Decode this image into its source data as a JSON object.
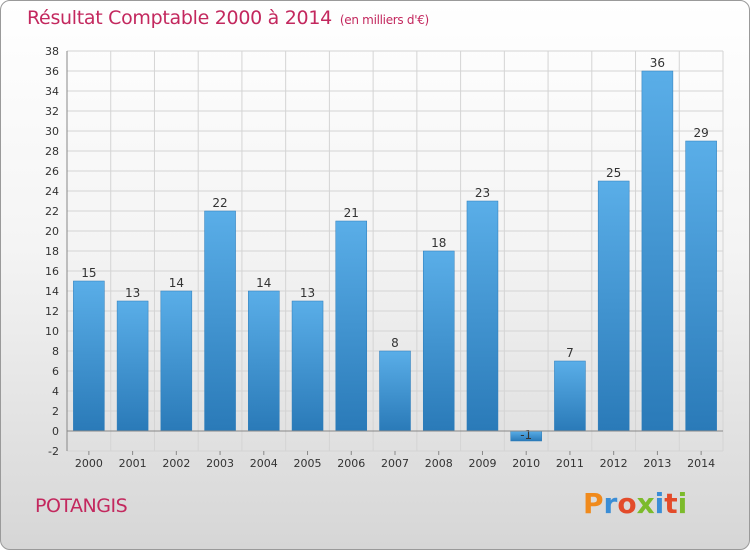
{
  "title": "Résultat Comptable 2000 à 2014",
  "subtitle": "(en milliers d'€)",
  "city": "POTANGIS",
  "logo": {
    "letters": [
      "P",
      "r",
      "o",
      "x",
      "i",
      "t",
      "i"
    ],
    "colors": [
      "#f08a1c",
      "#3a8dd6",
      "#e34b2a",
      "#7cbb2b",
      "#3a8dd6",
      "#e34b2a",
      "#7cbb2b"
    ]
  },
  "colors": {
    "bar_light": "#5aaee8",
    "bar_dark": "#2a7ab8",
    "title": "#c3285e"
  },
  "chart_data": {
    "type": "bar",
    "title": "Résultat Comptable 2000 à 2014",
    "categories": [
      "2000",
      "2001",
      "2002",
      "2003",
      "2004",
      "2005",
      "2006",
      "2007",
      "2008",
      "2009",
      "2010",
      "2011",
      "2012",
      "2013",
      "2014"
    ],
    "values": [
      15,
      13,
      14,
      22,
      14,
      13,
      21,
      8,
      18,
      23,
      -1,
      7,
      25,
      36,
      29
    ],
    "labels": [
      "15",
      "13",
      "14",
      "22",
      "14",
      "13",
      "21",
      "8",
      "18",
      "23",
      "-1",
      "7",
      "25",
      "36",
      "29"
    ],
    "ylim": [
      -2,
      38
    ],
    "yticks": [
      -2,
      0,
      2,
      4,
      6,
      8,
      10,
      12,
      14,
      16,
      18,
      20,
      22,
      24,
      26,
      28,
      30,
      32,
      34,
      36,
      38
    ],
    "grid": true,
    "xlabel": "",
    "ylabel": ""
  }
}
